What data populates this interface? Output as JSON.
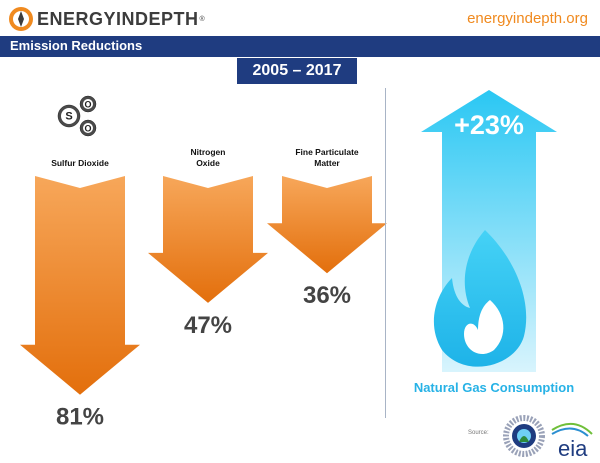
{
  "brand": {
    "name": "ENERGYINDEPTH",
    "reg": "®",
    "url": "energyindepth.org"
  },
  "section": {
    "title": "Emission Reductions",
    "period": "2005 – 2017"
  },
  "chart_data": {
    "type": "bar",
    "title": "Emission Reductions",
    "subtitle": "2005 – 2017",
    "categories": [
      "Sulfur Dioxide",
      "Nitrogen Oxide",
      "Fine Particulate Matter"
    ],
    "category_lines": [
      [
        "Sulfur Dioxide"
      ],
      [
        "Nitrogen",
        "Oxide"
      ],
      [
        "Fine Particulate",
        "Matter"
      ]
    ],
    "values": [
      -81,
      -47,
      -36
    ],
    "value_labels": [
      "81%",
      "47%",
      "36%"
    ],
    "ylim": [
      -100,
      0
    ],
    "so2_molecule": [
      "S",
      "O",
      "O"
    ],
    "growth": {
      "label": "Natural Gas Consumption",
      "value": 23,
      "value_label": "+23%"
    }
  },
  "source": {
    "label": "Source:",
    "logos": [
      "epa-seal",
      "eia"
    ],
    "eia_text": "eia"
  },
  "colors": {
    "orange_light": "#f7a75a",
    "orange_dark": "#e36f0c",
    "blue_dark": "#1f3c80",
    "blue_light": "#d8f4fd",
    "blue_mid": "#2ac7f3",
    "site_orange": "#f08a1f"
  }
}
